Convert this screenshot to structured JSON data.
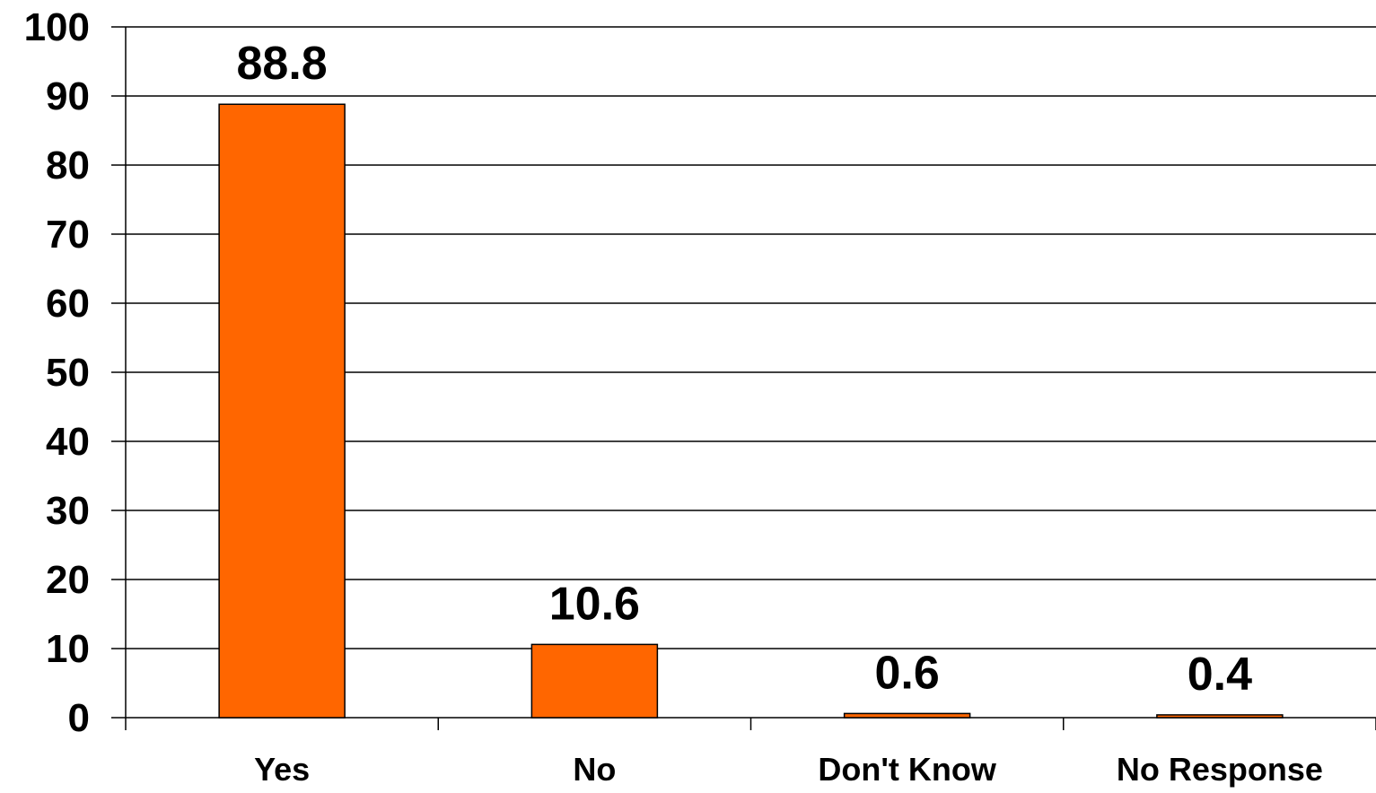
{
  "chart_data": {
    "type": "bar",
    "categories": [
      "Yes",
      "No",
      "Don't Know",
      "No Response"
    ],
    "values": [
      88.8,
      10.6,
      0.6,
      0.4
    ],
    "data_labels": [
      "88.8",
      "10.6",
      "0.6",
      "0.4"
    ],
    "title": "",
    "xlabel": "",
    "ylabel": "",
    "ylim": [
      0,
      100
    ],
    "yticks": [
      0,
      10,
      20,
      30,
      40,
      50,
      60,
      70,
      80,
      90,
      100
    ],
    "ytick_labels": [
      "0",
      "10",
      "20",
      "30",
      "40",
      "50",
      "60",
      "70",
      "80",
      "90",
      "100"
    ],
    "grid": true,
    "legend": "none",
    "bar_color": "#FF6600",
    "bar_edge_color": "#000000",
    "background_color": "#FFFFFF"
  }
}
